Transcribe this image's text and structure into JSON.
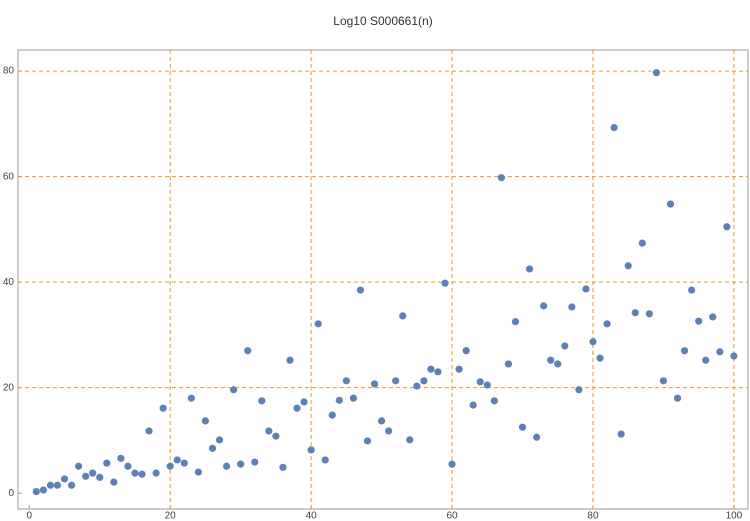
{
  "chart_data": {
    "type": "scatter",
    "title": "Log10 S000661(n)",
    "x": [
      1,
      2,
      3,
      4,
      5,
      6,
      7,
      8,
      9,
      10,
      11,
      12,
      13,
      14,
      15,
      16,
      17,
      18,
      19,
      20,
      21,
      22,
      23,
      24,
      25,
      26,
      27,
      28,
      29,
      30,
      31,
      32,
      33,
      34,
      35,
      36,
      37,
      38,
      39,
      40,
      41,
      42,
      43,
      44,
      45,
      46,
      47,
      48,
      49,
      50,
      51,
      52,
      53,
      54,
      55,
      56,
      57,
      58,
      59,
      60,
      61,
      62,
      63,
      64,
      65,
      66,
      67,
      68,
      69,
      70,
      71,
      72,
      73,
      74,
      75,
      76,
      77,
      78,
      79,
      80,
      81,
      82,
      83,
      84,
      85,
      86,
      87,
      88,
      89,
      90,
      91,
      92,
      93,
      94,
      95,
      96,
      97,
      98,
      99,
      100
    ],
    "y": [
      0.3,
      0.6,
      1.5,
      1.5,
      2.7,
      1.5,
      5.1,
      3.2,
      3.8,
      3.0,
      5.7,
      2.1,
      6.6,
      5.1,
      3.8,
      3.6,
      11.8,
      3.8,
      16.1,
      5.1,
      6.3,
      5.7,
      18.0,
      4.0,
      13.7,
      8.5,
      10.1,
      5.1,
      19.6,
      5.5,
      27.0,
      5.9,
      17.5,
      11.8,
      10.8,
      4.9,
      25.2,
      16.1,
      17.3,
      8.2,
      32.1,
      6.3,
      14.8,
      17.6,
      21.3,
      18.0,
      38.5,
      9.9,
      20.7,
      13.7,
      11.8,
      21.3,
      33.6,
      10.1,
      20.3,
      21.3,
      23.5,
      23.0,
      39.8,
      5.5,
      23.5,
      27.0,
      16.7,
      21.1,
      20.5,
      17.5,
      59.8,
      24.5,
      32.5,
      12.5,
      42.5,
      10.6,
      35.5,
      25.2,
      24.5,
      27.9,
      35.3,
      19.6,
      38.7,
      28.7,
      25.6,
      32.1,
      69.3,
      11.2,
      43.1,
      34.2,
      47.4,
      34.0,
      79.7,
      21.3,
      54.8,
      18.0,
      27.0,
      38.5,
      32.6,
      25.2,
      33.4,
      26.8,
      50.5,
      26.0
    ],
    "color": "#5e81b5",
    "xlim": [
      -1.6,
      102
    ],
    "ylim": [
      -3,
      84
    ],
    "xticks": [
      0,
      20,
      40,
      60,
      80,
      100
    ],
    "yticks": [
      0,
      20,
      40,
      60,
      80
    ],
    "grid": true,
    "grid_color": "#e69a26"
  }
}
